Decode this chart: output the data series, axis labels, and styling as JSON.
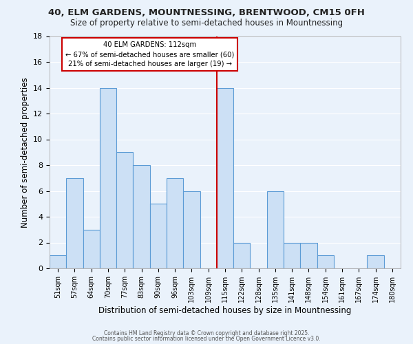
{
  "title": "40, ELM GARDENS, MOUNTNESSING, BRENTWOOD, CM15 0FH",
  "subtitle": "Size of property relative to semi-detached houses in Mountnessing",
  "xlabel": "Distribution of semi-detached houses by size in Mountnessing",
  "ylabel": "Number of semi-detached properties",
  "bin_labels": [
    "51sqm",
    "57sqm",
    "64sqm",
    "70sqm",
    "77sqm",
    "83sqm",
    "90sqm",
    "96sqm",
    "103sqm",
    "109sqm",
    "115sqm",
    "122sqm",
    "128sqm",
    "135sqm",
    "141sqm",
    "148sqm",
    "154sqm",
    "161sqm",
    "167sqm",
    "174sqm",
    "180sqm"
  ],
  "bar_values": [
    1,
    7,
    3,
    14,
    9,
    8,
    5,
    7,
    6,
    0,
    14,
    2,
    0,
    6,
    2,
    2,
    1,
    0,
    0,
    1,
    0
  ],
  "bar_color": "#cce0f5",
  "bar_edge_color": "#5b9bd5",
  "background_color": "#eaf2fb",
  "grid_color": "#ffffff",
  "vline_color": "#cc0000",
  "annotation_title": "40 ELM GARDENS: 112sqm",
  "annotation_line1": "← 67% of semi-detached houses are smaller (60)",
  "annotation_line2": "21% of semi-detached houses are larger (19) →",
  "annotation_box_color": "#ffffff",
  "annotation_box_edge": "#cc0000",
  "ylim": [
    0,
    18
  ],
  "yticks": [
    0,
    2,
    4,
    6,
    8,
    10,
    12,
    14,
    16,
    18
  ],
  "footnote1": "Contains HM Land Registry data © Crown copyright and database right 2025.",
  "footnote2": "Contains public sector information licensed under the Open Government Licence v3.0."
}
